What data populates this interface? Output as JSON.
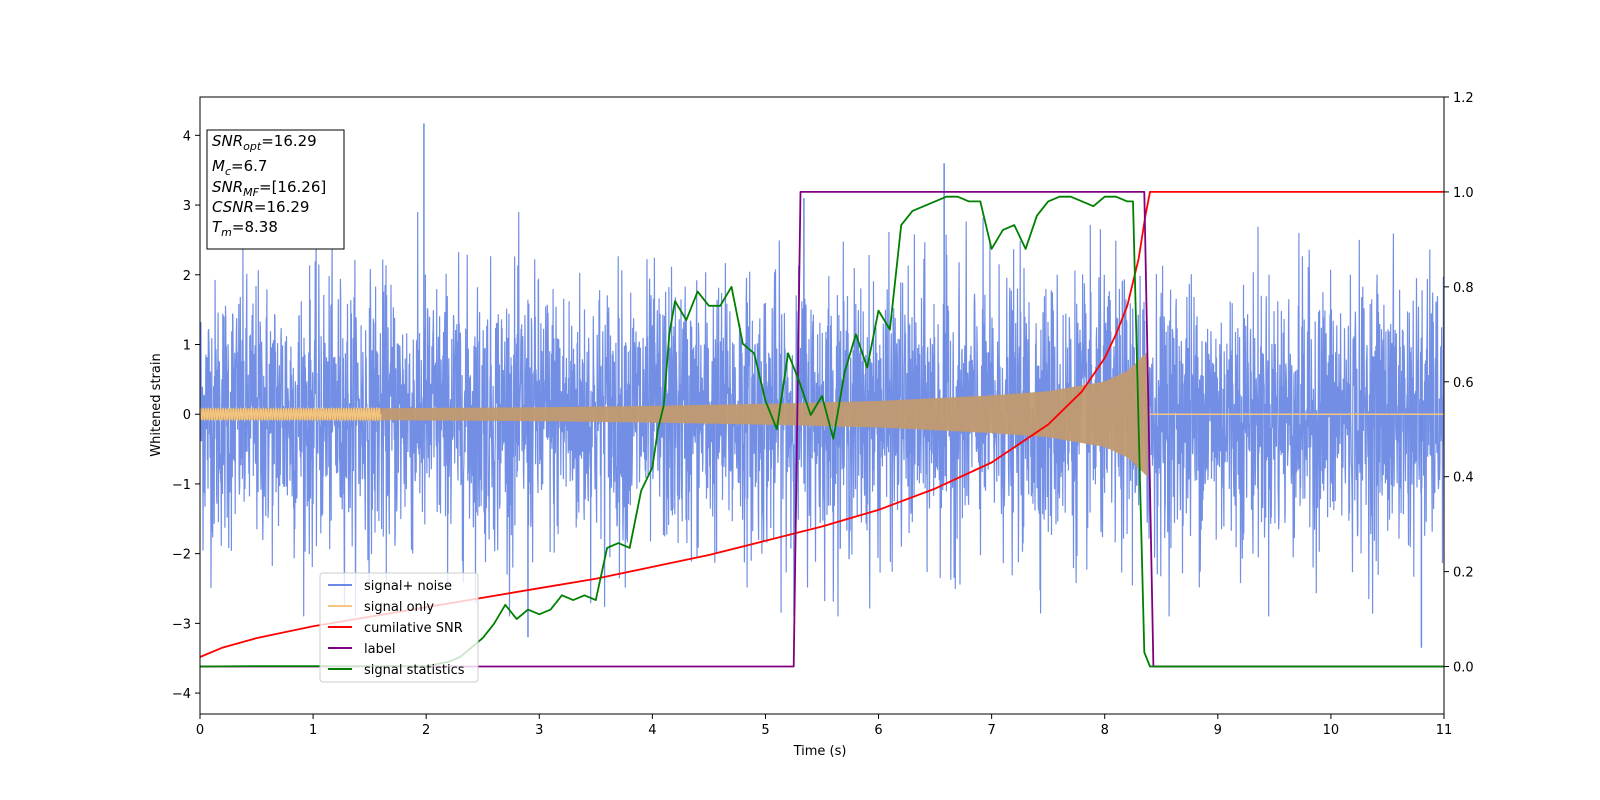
{
  "chart_data": {
    "type": "line",
    "xlabel": "Time (s)",
    "ylabel": "Whitened strain",
    "xlim": [
      0,
      11
    ],
    "ylim_left": [
      -4.3,
      4.55
    ],
    "ylim_right": [
      -0.1,
      1.2
    ],
    "x_ticks": [
      0,
      1,
      2,
      3,
      4,
      5,
      6,
      7,
      8,
      9,
      10,
      11
    ],
    "y_ticks_left": [
      -4,
      -3,
      -2,
      -1,
      0,
      1,
      2,
      3,
      4
    ],
    "y_tick_labels_left": [
      "−4",
      "−3",
      "−2",
      "−1",
      "0",
      "1",
      "2",
      "3",
      "4"
    ],
    "y_ticks_right": [
      0.0,
      0.2,
      0.4,
      0.6,
      0.8,
      1.0,
      1.2
    ],
    "y_tick_labels_right": [
      "0.0",
      "0.2",
      "0.4",
      "0.6",
      "0.8",
      "1.0",
      "1.2"
    ],
    "grid": false,
    "legend_placement": "lower-left",
    "series": [
      {
        "name": "signal+ noise",
        "axis": "left",
        "color": "#6a89e4",
        "description_values": {
          "typical_amplitude": 1.0,
          "max_spike": [
            1.98,
            4.17
          ],
          "other_spikes": [
            [
              6.58,
              3.6
            ],
            [
              5.34,
              3.1
            ],
            [
              2.9,
              -3.2
            ],
            [
              10.8,
              -3.35
            ]
          ]
        }
      },
      {
        "name": "signal only",
        "axis": "left",
        "color": "#f5c77e",
        "envelope": {
          "x": [
            0,
            1,
            2,
            3,
            4,
            5,
            6,
            7,
            7.5,
            8,
            8.2,
            8.38,
            8.4,
            11
          ],
          "amplitude": [
            0.08,
            0.08,
            0.09,
            0.1,
            0.12,
            0.15,
            0.19,
            0.27,
            0.33,
            0.47,
            0.62,
            0.9,
            0,
            0
          ]
        }
      },
      {
        "name": "cumilative SNR",
        "axis": "right",
        "color": "#ff0000",
        "x": [
          0,
          0.2,
          0.5,
          1,
          1.5,
          2,
          2.5,
          3,
          3.5,
          4,
          4.5,
          5,
          5.5,
          6,
          6.5,
          7,
          7.5,
          7.8,
          8,
          8.1,
          8.2,
          8.3,
          8.36,
          8.4,
          11
        ],
        "y": [
          0.02,
          0.04,
          0.06,
          0.085,
          0.105,
          0.125,
          0.145,
          0.165,
          0.185,
          0.21,
          0.235,
          0.265,
          0.295,
          0.33,
          0.375,
          0.43,
          0.51,
          0.58,
          0.65,
          0.7,
          0.76,
          0.86,
          0.95,
          1.0,
          1.0
        ]
      },
      {
        "name": "label",
        "axis": "right",
        "color": "#800080",
        "x": [
          0,
          5.25,
          5.31,
          8.35,
          8.43,
          11
        ],
        "y": [
          0,
          0,
          1,
          1,
          0,
          0
        ]
      },
      {
        "name": "signal statistics",
        "axis": "right",
        "color": "#008000",
        "x": [
          0,
          0.5,
          1,
          1.5,
          2,
          2.2,
          2.3,
          2.4,
          2.5,
          2.6,
          2.7,
          2.8,
          2.9,
          3,
          3.1,
          3.2,
          3.3,
          3.4,
          3.5,
          3.6,
          3.7,
          3.8,
          3.9,
          4,
          4.05,
          4.1,
          4.15,
          4.2,
          4.3,
          4.4,
          4.5,
          4.6,
          4.7,
          4.8,
          4.9,
          5,
          5.1,
          5.2,
          5.3,
          5.4,
          5.5,
          5.6,
          5.65,
          5.7,
          5.8,
          5.9,
          6,
          6.1,
          6.2,
          6.3,
          6.4,
          6.5,
          6.6,
          6.7,
          6.8,
          6.9,
          7,
          7.1,
          7.2,
          7.3,
          7.4,
          7.5,
          7.6,
          7.7,
          7.8,
          7.9,
          8,
          8.1,
          8.2,
          8.25,
          8.3,
          8.35,
          8.4,
          8.45,
          9,
          10,
          11
        ],
        "y": [
          0,
          0.001,
          0.001,
          0.001,
          0.001,
          0.01,
          0.02,
          0.04,
          0.06,
          0.09,
          0.13,
          0.1,
          0.12,
          0.11,
          0.12,
          0.15,
          0.14,
          0.15,
          0.14,
          0.25,
          0.26,
          0.25,
          0.37,
          0.42,
          0.5,
          0.55,
          0.7,
          0.77,
          0.73,
          0.79,
          0.76,
          0.76,
          0.8,
          0.68,
          0.66,
          0.56,
          0.5,
          0.66,
          0.6,
          0.53,
          0.57,
          0.48,
          0.55,
          0.62,
          0.7,
          0.63,
          0.75,
          0.71,
          0.93,
          0.96,
          0.97,
          0.98,
          0.99,
          0.99,
          0.98,
          0.98,
          0.88,
          0.92,
          0.93,
          0.88,
          0.95,
          0.98,
          0.99,
          0.99,
          0.98,
          0.97,
          0.99,
          0.99,
          0.98,
          0.98,
          0.5,
          0.03,
          0.0,
          0.0,
          0.0,
          0.0,
          0.0
        ]
      }
    ],
    "annotation_box": {
      "lines": [
        {
          "base": "SNR",
          "sub": "opt",
          "value": "=16.29"
        },
        {
          "base": "M",
          "sub": "c",
          "value": "=6.7"
        },
        {
          "base": "SNR",
          "sub": "MF",
          "value": "=[16.26]"
        },
        {
          "base": "CSNR",
          "sub": "",
          "value": "=16.29"
        },
        {
          "base": "T",
          "sub": "m",
          "value": "=8.38"
        }
      ]
    }
  }
}
